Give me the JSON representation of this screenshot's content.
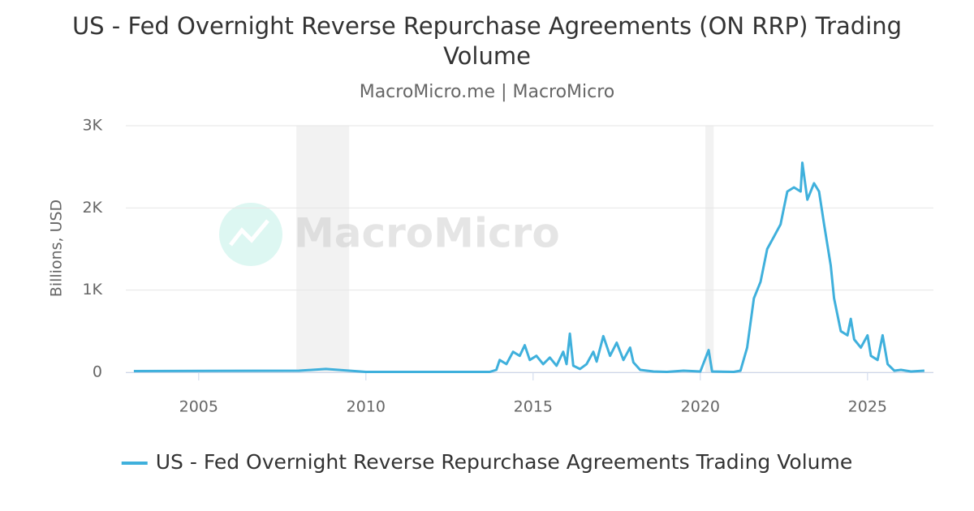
{
  "chart_data": {
    "type": "line",
    "title": "US - Fed Overnight Reverse Repurchase Agreements (ON RRP) Trading Volume",
    "subtitle": "MacroMicro.me | MacroMicro",
    "watermark": "MacroMicro",
    "y_label": "Billions, USD",
    "x": [
      2003.06,
      2008.0,
      2008.8,
      2009.5,
      2010.0,
      2013.7,
      2013.9,
      2014.0,
      2014.2,
      2014.4,
      2014.6,
      2014.75,
      2014.9,
      2015.1,
      2015.3,
      2015.5,
      2015.7,
      2015.9,
      2016.0,
      2016.1,
      2016.2,
      2016.4,
      2016.6,
      2016.8,
      2016.9,
      2017.1,
      2017.3,
      2017.5,
      2017.7,
      2017.9,
      2018.0,
      2018.2,
      2018.6,
      2019.0,
      2019.5,
      2020.0,
      2020.25,
      2020.35,
      2021.0,
      2021.2,
      2021.4,
      2021.6,
      2021.8,
      2022.0,
      2022.2,
      2022.4,
      2022.5,
      2022.6,
      2022.8,
      2023.0,
      2023.05,
      2023.2,
      2023.4,
      2023.55,
      2023.7,
      2023.9,
      2024.0,
      2024.2,
      2024.4,
      2024.5,
      2024.6,
      2024.8,
      2025.0,
      2025.1,
      2025.3,
      2025.45,
      2025.6,
      2025.8,
      2026.0,
      2026.3,
      2026.7
    ],
    "series": [
      {
        "name": "US - Fed Overnight Reverse Repurchase Agreements Trading Volume",
        "color": "#3fb0dc",
        "values": [
          15,
          20,
          40,
          20,
          5,
          5,
          30,
          150,
          100,
          250,
          200,
          330,
          150,
          200,
          100,
          180,
          80,
          250,
          100,
          470,
          80,
          40,
          100,
          250,
          130,
          440,
          200,
          360,
          150,
          300,
          120,
          30,
          10,
          5,
          20,
          10,
          270,
          10,
          5,
          20,
          300,
          900,
          1100,
          1500,
          1650,
          1800,
          2000,
          2200,
          2250,
          2200,
          2550,
          2100,
          2300,
          2200,
          1800,
          1300,
          900,
          500,
          450,
          650,
          400,
          300,
          450,
          200,
          150,
          450,
          100,
          20,
          30,
          10,
          20
        ]
      }
    ],
    "shaded_periods": [
      [
        2007.92,
        2009.5
      ],
      [
        2020.15,
        2020.4
      ]
    ],
    "xlim": [
      2002.82,
      2026.97
    ],
    "xticks": [
      2005,
      2010,
      2015,
      2020,
      2025
    ],
    "ylim": [
      0,
      3000
    ],
    "yticks": [
      0,
      {
        "value": 1000,
        "label": "1K"
      },
      {
        "value": 2000,
        "label": "2K"
      },
      {
        "value": 3000,
        "label": "3K"
      }
    ],
    "grid": true
  }
}
